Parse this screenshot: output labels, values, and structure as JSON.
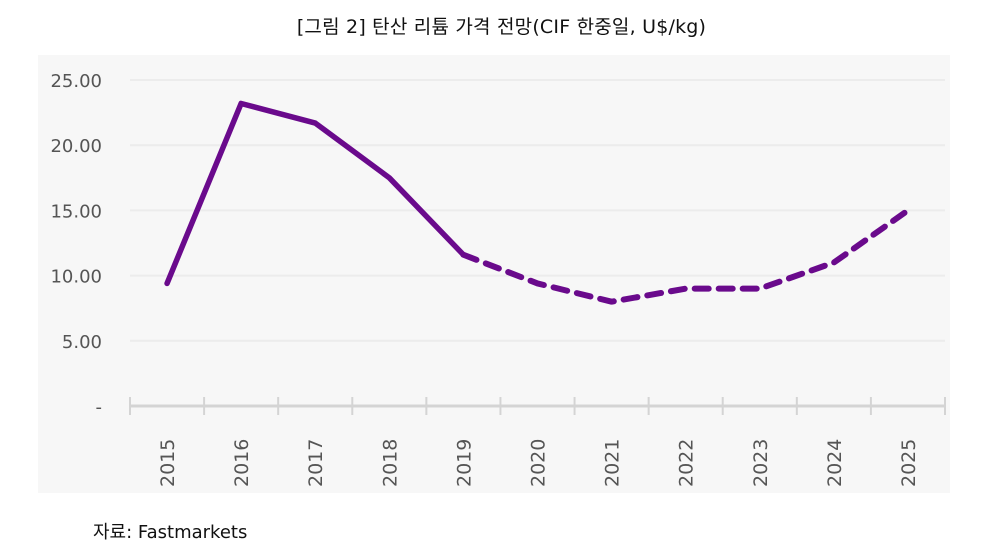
{
  "title": "[그림 2] 탄산 리튬 가격 전망(CIF 한중일, U$/kg)",
  "source": "자료: Fastmarkets",
  "colors": {
    "line": "#6a0a8c",
    "grid": "#ececec",
    "axis": "#d4d4d4",
    "background": "#f7f7f7"
  },
  "chart_data": {
    "type": "line",
    "title": "[그림 2] 탄산 리튬 가격 전망(CIF 한중일, U$/kg)",
    "xlabel": "",
    "ylabel": "",
    "categories": [
      "2015",
      "2016",
      "2017",
      "2018",
      "2019",
      "2020",
      "2021",
      "2022",
      "2023",
      "2024",
      "2025"
    ],
    "series": [
      {
        "name": "탄산 리튬 가격",
        "values": [
          9.4,
          23.2,
          21.7,
          17.5,
          11.6,
          9.4,
          8.0,
          9.0,
          9.0,
          11.0,
          15.0
        ],
        "solid_until": "2019",
        "dashed_from": "2019"
      }
    ],
    "ylim": [
      0,
      25
    ],
    "yticks": [
      {
        "value": 0,
        "label": "-"
      },
      {
        "value": 5,
        "label": "5.00"
      },
      {
        "value": 10,
        "label": "10.00"
      },
      {
        "value": 15,
        "label": "15.00"
      },
      {
        "value": 20,
        "label": "20.00"
      },
      {
        "value": 25,
        "label": "25.00"
      }
    ],
    "grid": true,
    "legend": "none"
  }
}
